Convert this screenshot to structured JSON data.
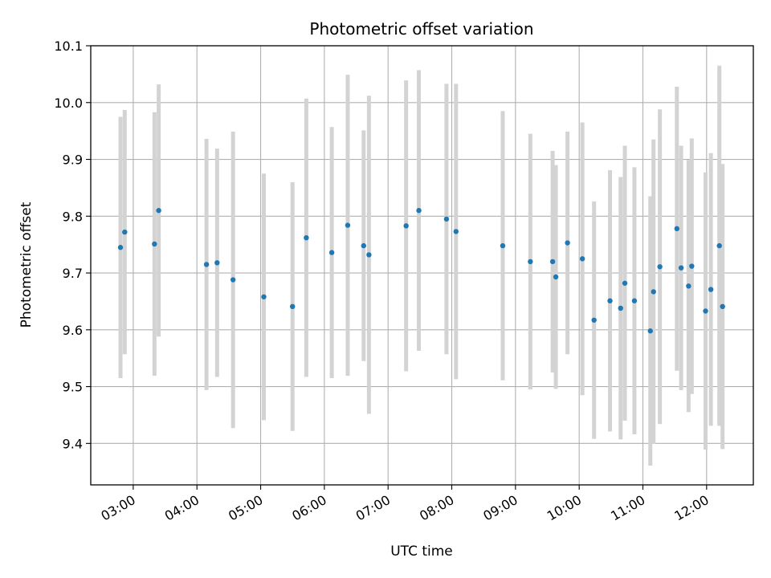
{
  "chart_data": {
    "type": "scatter",
    "title": "Photometric offset variation",
    "xlabel": "UTC time",
    "ylabel": "Photometric offset",
    "x_ticks": [
      "03:00",
      "04:00",
      "05:00",
      "06:00",
      "07:00",
      "08:00",
      "09:00",
      "10:00",
      "11:00",
      "12:00"
    ],
    "y_ticks": [
      "9.4",
      "9.5",
      "9.6",
      "9.7",
      "9.8",
      "9.9",
      "10.0",
      "10.1"
    ],
    "xlim": [
      "02:20",
      "12:44"
    ],
    "ylim": [
      9.327,
      10.1
    ],
    "grid": true,
    "colors": {
      "points": "#1f77b4",
      "errorbars": "#d3d3d3",
      "grid": "#b0b0b0"
    },
    "points": [
      {
        "x": "02:48",
        "y": 9.745,
        "err": 0.23
      },
      {
        "x": "02:52",
        "y": 9.772,
        "err": 0.215
      },
      {
        "x": "03:20",
        "y": 9.751,
        "err": 0.232
      },
      {
        "x": "03:24",
        "y": 9.81,
        "err": 0.222
      },
      {
        "x": "04:09",
        "y": 9.715,
        "err": 0.221
      },
      {
        "x": "04:19",
        "y": 9.718,
        "err": 0.201
      },
      {
        "x": "04:34",
        "y": 9.688,
        "err": 0.261
      },
      {
        "x": "05:03",
        "y": 9.658,
        "err": 0.217
      },
      {
        "x": "05:30",
        "y": 9.641,
        "err": 0.219
      },
      {
        "x": "05:43",
        "y": 9.762,
        "err": 0.245
      },
      {
        "x": "06:07",
        "y": 9.736,
        "err": 0.221
      },
      {
        "x": "06:22",
        "y": 9.784,
        "err": 0.265
      },
      {
        "x": "06:37",
        "y": 9.748,
        "err": 0.203
      },
      {
        "x": "06:42",
        "y": 9.732,
        "err": 0.28
      },
      {
        "x": "07:17",
        "y": 9.783,
        "err": 0.256
      },
      {
        "x": "07:29",
        "y": 9.81,
        "err": 0.247
      },
      {
        "x": "07:55",
        "y": 9.795,
        "err": 0.238
      },
      {
        "x": "08:04",
        "y": 9.773,
        "err": 0.26
      },
      {
        "x": "08:48",
        "y": 9.748,
        "err": 0.237
      },
      {
        "x": "09:14",
        "y": 9.72,
        "err": 0.225
      },
      {
        "x": "09:35",
        "y": 9.72,
        "err": 0.195
      },
      {
        "x": "09:38",
        "y": 9.693,
        "err": 0.197
      },
      {
        "x": "09:49",
        "y": 9.753,
        "err": 0.196
      },
      {
        "x": "10:03",
        "y": 9.725,
        "err": 0.24
      },
      {
        "x": "10:14",
        "y": 9.617,
        "err": 0.209
      },
      {
        "x": "10:29",
        "y": 9.651,
        "err": 0.23
      },
      {
        "x": "10:39",
        "y": 9.638,
        "err": 0.231
      },
      {
        "x": "10:43",
        "y": 9.682,
        "err": 0.242
      },
      {
        "x": "10:52",
        "y": 9.651,
        "err": 0.235
      },
      {
        "x": "11:07",
        "y": 9.598,
        "err": 0.237
      },
      {
        "x": "11:10",
        "y": 9.667,
        "err": 0.268
      },
      {
        "x": "11:16",
        "y": 9.711,
        "err": 0.277
      },
      {
        "x": "11:32",
        "y": 9.778,
        "err": 0.25
      },
      {
        "x": "11:36",
        "y": 9.709,
        "err": 0.215
      },
      {
        "x": "11:43",
        "y": 9.677,
        "err": 0.222
      },
      {
        "x": "11:46",
        "y": 9.712,
        "err": 0.225
      },
      {
        "x": "11:59",
        "y": 9.633,
        "err": 0.244
      },
      {
        "x": "12:04",
        "y": 9.671,
        "err": 0.24
      },
      {
        "x": "12:12",
        "y": 9.748,
        "err": 0.317
      },
      {
        "x": "12:15",
        "y": 9.641,
        "err": 0.251
      }
    ]
  }
}
